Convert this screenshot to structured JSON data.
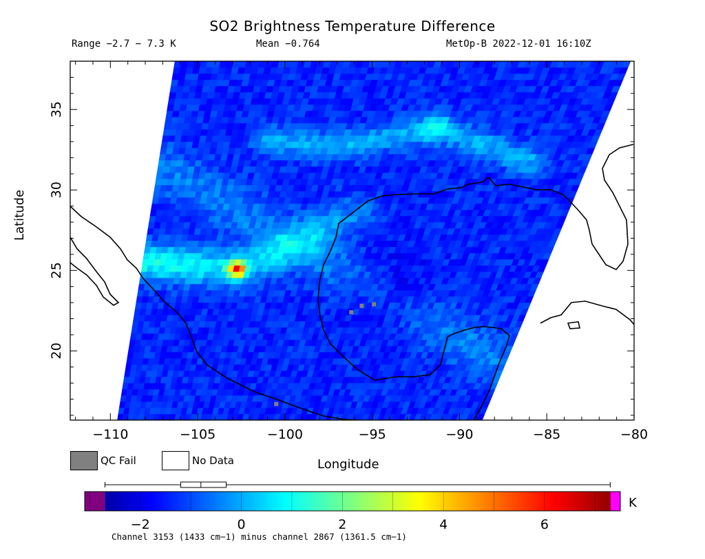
{
  "header": {
    "title": "SO2 Brightness Temperature Difference",
    "range": "Range −2.7 − 7.3 K",
    "mean": "Mean −0.764",
    "satellite": "MetOp-B 2022-12-01 16:10Z"
  },
  "legend": {
    "qc_fail": "QC Fail",
    "no_data": "No Data",
    "qc_color": "#808080",
    "no_data_color": "#ffffff"
  },
  "footer": "Channel 3153 (1433 cm−1) minus channel 2867 (1361.5 cm−1)",
  "colorbar": {
    "unit": "K",
    "min": -3.1,
    "max": 7.5,
    "ticks": [
      -2,
      0,
      2,
      4,
      6
    ],
    "tick_labels": [
      "−2",
      "0",
      "2",
      "4",
      "6"
    ],
    "underflow_color": "#800080",
    "overflow_color": "#ff00ff",
    "boxplot": {
      "whisker_low": -2.7,
      "q1": -1.2,
      "median": -0.8,
      "q3": -0.3,
      "whisker_high": 7.3
    }
  },
  "chart_data": {
    "type": "heatmap",
    "title": "SO2 Brightness Temperature Difference",
    "xlabel": "Longitude",
    "ylabel": "Latitude",
    "xlim": [
      -112.3,
      -80
    ],
    "ylim": [
      15.7,
      38
    ],
    "x_ticks": [
      -110,
      -105,
      -100,
      -95,
      -90,
      -85,
      -80
    ],
    "x_tick_labels": [
      "−110",
      "−105",
      "−100",
      "−95",
      "−90",
      "−85",
      "−80"
    ],
    "y_ticks": [
      20,
      25,
      30,
      35
    ],
    "y_tick_labels": [
      "20",
      "25",
      "30",
      "35"
    ],
    "value_unit": "K",
    "value_range": [
      -2.7,
      7.3
    ],
    "mean": -0.764,
    "swath": {
      "bottom_west_lon": -109.6,
      "bottom_east_lon": -88.7,
      "top_west_lon": -106.3,
      "top_east_lon": -80.2,
      "bottom_lat": 15.7,
      "top_lat": 38
    },
    "plume_track": [
      [
        -108.2,
        25.6
      ],
      [
        -105,
        25.3
      ],
      [
        -102.6,
        25.1
      ],
      [
        -99,
        26.8
      ],
      [
        -96,
        28.6
      ]
    ],
    "plume_peak": {
      "lon": -102.7,
      "lat": 25.1,
      "value": 7.3
    },
    "upper_band_track": [
      [
        -101,
        33.1
      ],
      [
        -97,
        32.7
      ],
      [
        -93.5,
        33.4
      ],
      [
        -91,
        33.8
      ],
      [
        -86,
        31.8
      ]
    ],
    "qc_fail_points": [
      [
        -95.6,
        22.8
      ],
      [
        -94.9,
        22.9
      ],
      [
        -96.2,
        22.4
      ],
      [
        -100.5,
        16.7
      ]
    ]
  }
}
